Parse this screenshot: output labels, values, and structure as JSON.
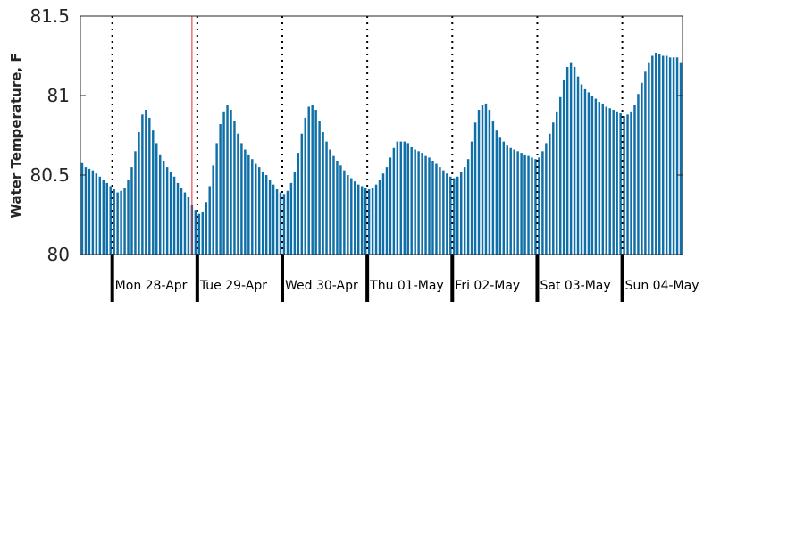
{
  "chart_data": {
    "type": "bar",
    "ylabel": "Water Temperature, F",
    "ylim": [
      80,
      81.5
    ],
    "yticks": [
      "80",
      "80.5",
      "81",
      "81.5"
    ],
    "bar_color": "#0f6fa8",
    "marker_color": "#e8262d",
    "day_labels": [
      "Mon 28-Apr",
      "Tue 29-Apr",
      "Wed 30-Apr",
      "Thu 01-May",
      "Fri 02-May",
      "Sat 03-May",
      "Sun 04-May"
    ],
    "values": [
      80.58,
      80.55,
      80.54,
      80.53,
      80.51,
      80.49,
      80.47,
      80.45,
      80.43,
      80.41,
      80.39,
      80.4,
      80.42,
      80.47,
      80.55,
      80.65,
      80.77,
      80.88,
      80.91,
      80.86,
      80.78,
      80.7,
      80.63,
      80.59,
      80.55,
      80.52,
      80.49,
      80.45,
      80.42,
      80.39,
      80.36,
      80.31,
      80.28,
      80.26,
      80.27,
      80.33,
      80.43,
      80.56,
      80.7,
      80.82,
      80.9,
      80.94,
      80.91,
      80.84,
      80.76,
      80.7,
      80.66,
      80.63,
      80.6,
      80.57,
      80.55,
      80.52,
      80.5,
      80.47,
      80.44,
      80.41,
      80.39,
      80.38,
      80.4,
      80.45,
      80.52,
      80.64,
      80.76,
      80.86,
      80.93,
      80.94,
      80.91,
      80.84,
      80.77,
      80.71,
      80.66,
      80.62,
      80.59,
      80.56,
      80.53,
      80.5,
      80.48,
      80.46,
      80.44,
      80.43,
      80.42,
      80.41,
      80.42,
      80.44,
      80.47,
      80.51,
      80.55,
      80.61,
      80.67,
      80.71,
      80.71,
      80.71,
      80.7,
      80.68,
      80.66,
      80.65,
      80.64,
      80.62,
      80.61,
      80.59,
      80.57,
      80.55,
      80.53,
      80.51,
      80.49,
      80.48,
      80.49,
      80.52,
      80.55,
      80.6,
      80.71,
      80.83,
      80.91,
      80.94,
      80.95,
      80.91,
      80.84,
      80.78,
      80.74,
      80.71,
      80.69,
      80.67,
      80.66,
      80.65,
      80.64,
      80.63,
      80.62,
      80.61,
      80.6,
      80.61,
      80.65,
      80.7,
      80.76,
      80.83,
      80.9,
      80.99,
      81.1,
      81.18,
      81.21,
      81.18,
      81.12,
      81.07,
      81.04,
      81.02,
      81.0,
      80.98,
      80.96,
      80.95,
      80.93,
      80.92,
      80.91,
      80.9,
      80.89,
      80.87,
      80.88,
      80.9,
      80.94,
      81.01,
      81.08,
      81.15,
      81.21,
      81.25,
      81.27,
      81.26,
      81.25,
      81.25,
      81.24,
      81.24,
      81.24,
      81.21
    ]
  }
}
